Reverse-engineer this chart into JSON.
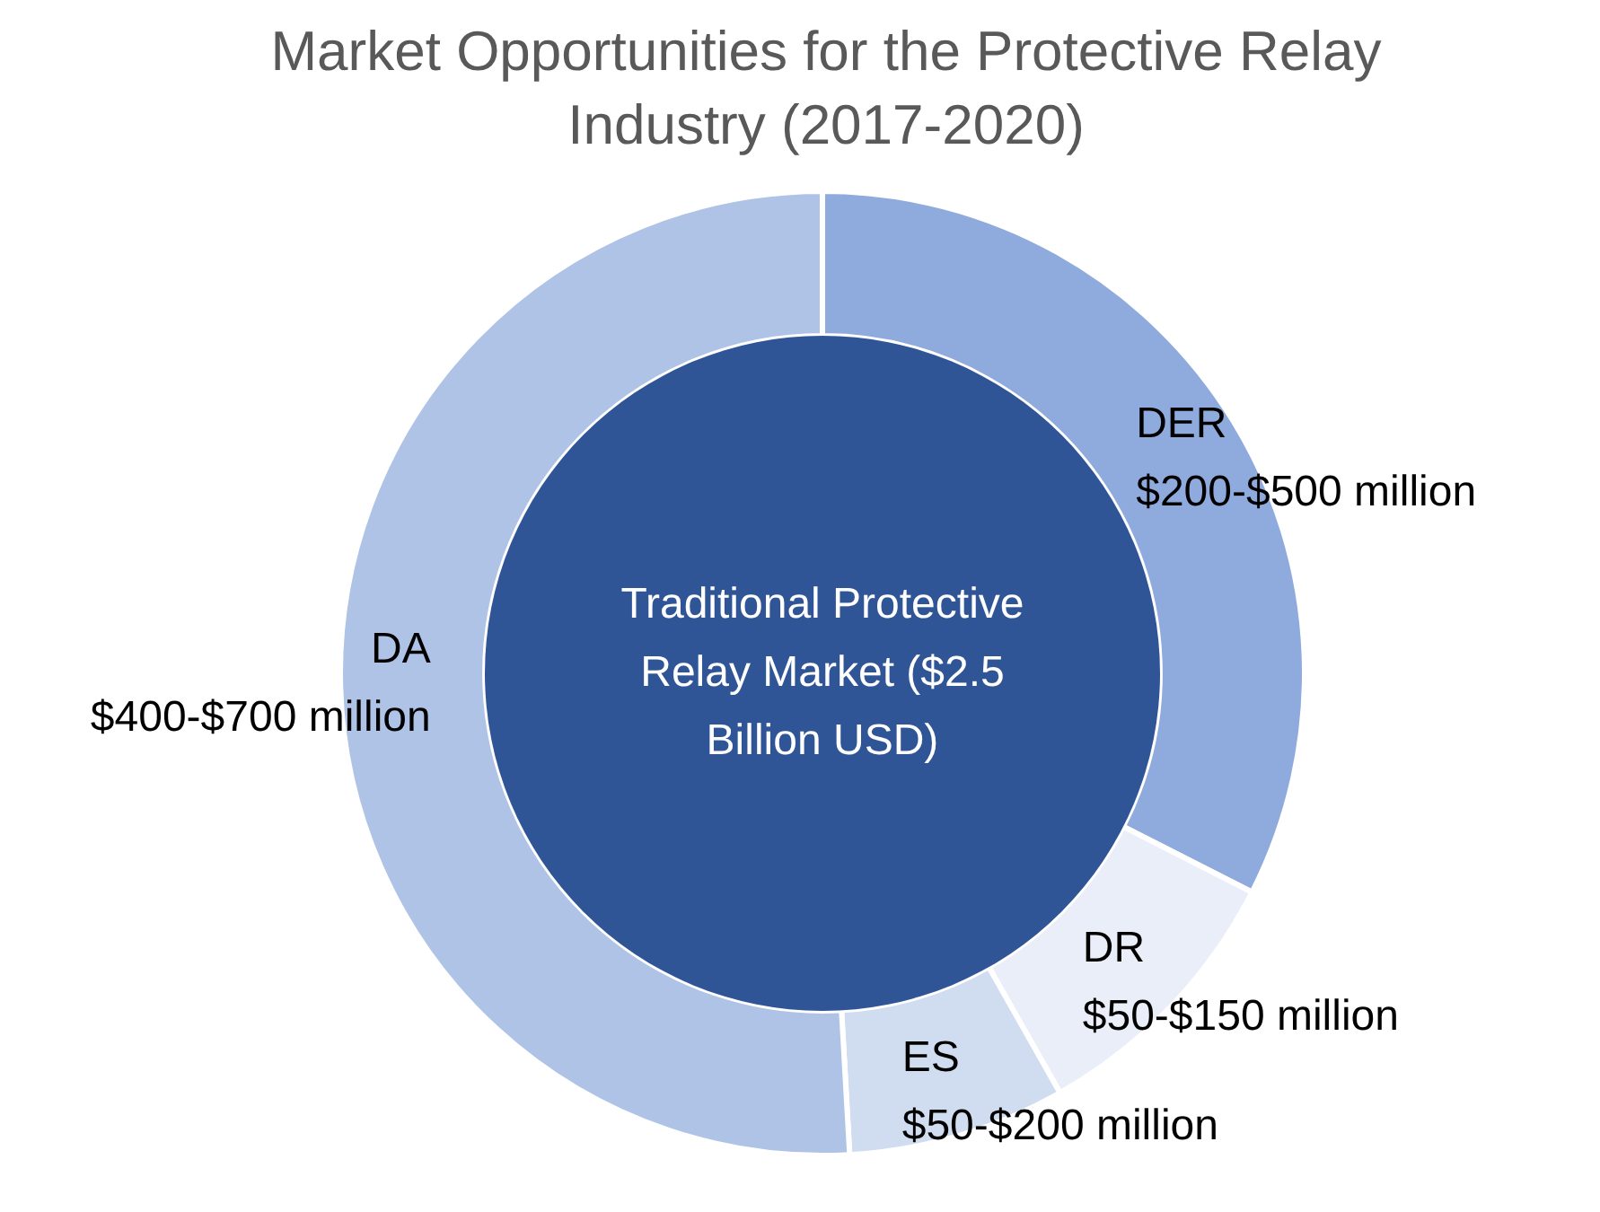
{
  "chart_data": {
    "type": "donut",
    "title": "Market Opportunities for the Protective Relay Industry (2017-2020)",
    "categories": [
      "DER",
      "DR",
      "ES",
      "DA"
    ],
    "values": [
      32.5,
      9.3,
      7.3,
      50.9
    ],
    "colors": [
      "#8faadc",
      "#e9eef8",
      "#d0dcf0",
      "#afc3e6"
    ],
    "value_labels": [
      "$200-$500 million",
      "$50-$150 million",
      "$50-$200 million",
      "$400-$700 million"
    ],
    "annotations": [
      "Traditional Protective Relay Market ($2.5 Billion USD)"
    ]
  }
}
